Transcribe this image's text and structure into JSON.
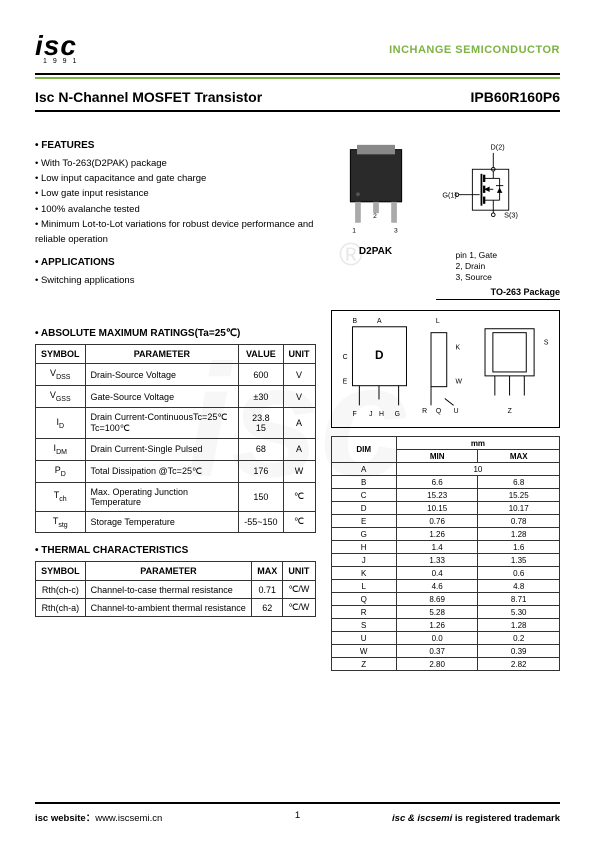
{
  "logo": "isc",
  "logo_year": "1 9 9 1",
  "company": "INCHANGE SEMICONDUCTOR",
  "title": "Isc N-Channel MOSFET Transistor",
  "part_number": "IPB60R160P6",
  "features_heading": "• FEATURES",
  "features": [
    "With To-263(D2PAK) package",
    "Low input capacitance and gate charge",
    "Low gate input resistance",
    "100% avalanche tested",
    "Minimum Lot-to-Lot variations for robust device performance and reliable operation"
  ],
  "apps_heading": "• APPLICATIONS",
  "apps": [
    "Switching applications"
  ],
  "abs_heading": "• ABSOLUTE MAXIMUM RATINGS(Ta=25℃)",
  "abs_headers": {
    "symbol": "SYMBOL",
    "parameter": "PARAMETER",
    "value": "VALUE",
    "unit": "UNIT"
  },
  "abs_rows": [
    {
      "sym": "V",
      "sub": "DSS",
      "param": "Drain-Source Voltage",
      "val": "600",
      "unit": "V"
    },
    {
      "sym": "V",
      "sub": "GSS",
      "param": "Gate-Source Voltage",
      "val": "±30",
      "unit": "V"
    },
    {
      "sym": "I",
      "sub": "D",
      "param": "Drain Current-ContinuousTc=25℃\n                               Tc=100℃",
      "val": "23.8\n15",
      "unit": "A"
    },
    {
      "sym": "I",
      "sub": "DM",
      "param": "Drain Current-Single Pulsed",
      "val": "68",
      "unit": "A"
    },
    {
      "sym": "P",
      "sub": "D",
      "param": "Total Dissipation @Tc=25℃",
      "val": "176",
      "unit": "W"
    },
    {
      "sym": "T",
      "sub": "ch",
      "param": "Max. Operating Junction Temperature",
      "val": "150",
      "unit": "℃"
    },
    {
      "sym": "T",
      "sub": "stg",
      "param": "Storage Temperature",
      "val": "-55~150",
      "unit": "℃"
    }
  ],
  "thermal_heading": "• THERMAL CHARACTERISTICS",
  "thermal_headers": {
    "symbol": "SYMBOL",
    "parameter": "PARAMETER",
    "max": "MAX",
    "unit": "UNIT"
  },
  "thermal_rows": [
    {
      "sym": "Rth(ch-c)",
      "param": "Channel-to-case thermal resistance",
      "max": "0.71",
      "unit": "℃/W"
    },
    {
      "sym": "Rth(ch-a)",
      "param": "Channel-to-ambient thermal resistance",
      "max": "62",
      "unit": "℃/W"
    }
  ],
  "schematic_labels": {
    "drain": "D(2)",
    "gate": "G(1)",
    "source": "S(3)"
  },
  "pinout_label": "pin 1, Gate\n2, Drain\n3, Source",
  "d2pak_label": "D2PAK",
  "pkg_title": "TO-263 Package",
  "mech_labels": [
    "A",
    "B",
    "L",
    "S",
    "K",
    "W",
    "D",
    "E",
    "C",
    "F",
    "J",
    "H",
    "G",
    "R",
    "Q",
    "U"
  ],
  "dims_heading": "mm",
  "dims_headers": {
    "dim": "DIM",
    "min": "MIN",
    "max": "MAX"
  },
  "dims_rows": [
    {
      "d": "A",
      "min": "10",
      "max": "",
      "span": true
    },
    {
      "d": "B",
      "min": "6.6",
      "max": "6.8"
    },
    {
      "d": "C",
      "min": "15.23",
      "max": "15.25"
    },
    {
      "d": "D",
      "min": "10.15",
      "max": "10.17"
    },
    {
      "d": "E",
      "min": "0.76",
      "max": "0.78"
    },
    {
      "d": "G",
      "min": "1.26",
      "max": "1.28"
    },
    {
      "d": "H",
      "min": "1.4",
      "max": "1.6"
    },
    {
      "d": "J",
      "min": "1.33",
      "max": "1.35"
    },
    {
      "d": "K",
      "min": "0.4",
      "max": "0.6"
    },
    {
      "d": "L",
      "min": "4.6",
      "max": "4.8"
    },
    {
      "d": "Q",
      "min": "8.69",
      "max": "8.71"
    },
    {
      "d": "R",
      "min": "5.28",
      "max": "5.30"
    },
    {
      "d": "S",
      "min": "1.26",
      "max": "1.28"
    },
    {
      "d": "U",
      "min": "0.0",
      "max": "0.2"
    },
    {
      "d": "W",
      "min": "0.37",
      "max": "0.39"
    },
    {
      "d": "Z",
      "min": "2.80",
      "max": "2.82"
    }
  ],
  "footer_left_a": "isc website：",
  "footer_left_b": "www.iscsemi.cn",
  "footer_right_a": "isc & iscsemi ",
  "footer_right_b": "is registered trademark",
  "page_num": "1"
}
